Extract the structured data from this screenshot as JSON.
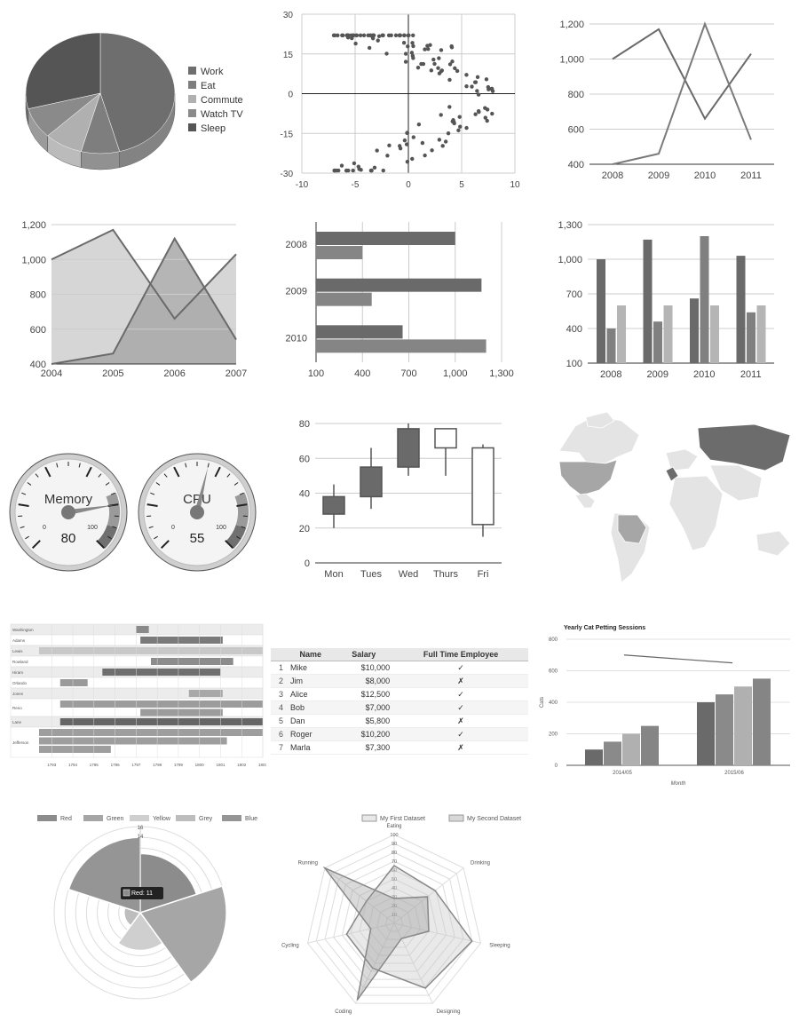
{
  "colors": {
    "dark": "#5f5f5f",
    "mid": "#777777",
    "light": "#aaaaaa",
    "lighter": "#cccccc",
    "grid": "#cccccc",
    "axis": "#333333"
  },
  "chart_data": [
    {
      "id": "pie",
      "type": "pie",
      "labels": [
        "Work",
        "Eat",
        "Commute",
        "Watch TV",
        "Sleep"
      ],
      "values": [
        11,
        2,
        2,
        2,
        7
      ],
      "colors": [
        "#6e6e6e",
        "#7e7e7e",
        "#b0b0b0",
        "#8a8a8a",
        "#555555"
      ],
      "legend": "right"
    },
    {
      "id": "scatter",
      "type": "scatter",
      "xlim": [
        -10,
        10
      ],
      "ylim": [
        -30,
        30
      ],
      "xticks": [
        "-10",
        "-5",
        "0",
        "5",
        "10"
      ],
      "yticks": [
        "30",
        "15",
        "0",
        "-15",
        "-30"
      ],
      "grid": true
    },
    {
      "id": "line",
      "type": "line",
      "categories": [
        "2008",
        "2009",
        "2010",
        "2011"
      ],
      "series": [
        {
          "values": [
            1000,
            1170,
            660,
            1030
          ]
        },
        {
          "values": [
            400,
            460,
            1200,
            540
          ]
        }
      ],
      "ylim": [
        400,
        1200
      ],
      "yticks": [
        "1,200",
        "1,000",
        "800",
        "600",
        "400"
      ]
    },
    {
      "id": "area",
      "type": "area",
      "categories": [
        "2004",
        "2005",
        "2006",
        "2007"
      ],
      "series": [
        {
          "values": [
            1000,
            1170,
            660,
            1030
          ]
        },
        {
          "values": [
            400,
            460,
            1120,
            540
          ]
        }
      ],
      "ylim": [
        400,
        1200
      ],
      "yticks": [
        "1,200",
        "1,000",
        "800",
        "600",
        "400"
      ]
    },
    {
      "id": "hbar",
      "type": "bar",
      "orientation": "horizontal",
      "categories": [
        "2008",
        "2009",
        "2010"
      ],
      "series": [
        {
          "values": [
            1000,
            1170,
            660
          ]
        },
        {
          "values": [
            400,
            460,
            1200
          ]
        }
      ],
      "xlim": [
        100,
        1300
      ],
      "xticks": [
        "100",
        "400",
        "700",
        "1,000",
        "1,300"
      ]
    },
    {
      "id": "cbar",
      "type": "bar",
      "categories": [
        "2008",
        "2009",
        "2010",
        "2011"
      ],
      "series": [
        {
          "values": [
            1000,
            1170,
            660,
            1030
          ]
        },
        {
          "values": [
            400,
            460,
            1200,
            540
          ]
        },
        {
          "values": [
            600,
            600,
            600,
            600
          ]
        }
      ],
      "ylim": [
        100,
        1300
      ],
      "yticks": [
        "1,300",
        "1,000",
        "700",
        "400",
        "100"
      ]
    },
    {
      "id": "gauge",
      "type": "gauge",
      "gauges": [
        {
          "label": "Memory",
          "value": "80",
          "v": 80
        },
        {
          "label": "CPU",
          "value": "55",
          "v": 55
        }
      ],
      "min": "0",
      "max": "100"
    },
    {
      "id": "candle",
      "type": "candlestick",
      "categories": [
        "Mon",
        "Tues",
        "Wed",
        "Thurs",
        "Fri"
      ],
      "low": [
        20,
        31,
        50,
        50,
        15
      ],
      "open": [
        28,
        38,
        55,
        77,
        66
      ],
      "close": [
        38,
        55,
        77,
        66,
        22
      ],
      "high": [
        45,
        66,
        80,
        77,
        68
      ],
      "ylim": [
        0,
        80
      ],
      "yticks": [
        "80",
        "60",
        "40",
        "20",
        "0"
      ]
    },
    {
      "id": "timeline",
      "type": "timeline",
      "rows": [
        "Washington",
        "Adams",
        "Lewis",
        "Rowland",
        "Hiram",
        "Orlando",
        "Jones",
        "Reno",
        "Lane",
        "Jefferson"
      ],
      "xticks": [
        "1793",
        "1794",
        "1795",
        "1796",
        "1797",
        "1798",
        "1799",
        "1800",
        "1801",
        "1802",
        "1803"
      ]
    },
    {
      "id": "table",
      "type": "table",
      "headers": [
        "Name",
        "Salary",
        "Full Time Employee"
      ],
      "rows": [
        {
          "n": "1",
          "name": "Mike",
          "salary": "$10,000",
          "ft": "✓"
        },
        {
          "n": "2",
          "name": "Jim",
          "salary": "$8,000",
          "ft": "✗"
        },
        {
          "n": "3",
          "name": "Alice",
          "salary": "$12,500",
          "ft": "✓"
        },
        {
          "n": "4",
          "name": "Bob",
          "salary": "$7,000",
          "ft": "✓"
        },
        {
          "n": "5",
          "name": "Dan",
          "salary": "$5,800",
          "ft": "✗"
        },
        {
          "n": "6",
          "name": "Roger",
          "salary": "$10,200",
          "ft": "✓"
        },
        {
          "n": "7",
          "name": "Marla",
          "salary": "$7,300",
          "ft": "✗"
        }
      ]
    },
    {
      "id": "combo",
      "type": "bar",
      "title": "Yearly Cat Petting Sessions",
      "xlabel": "Month",
      "ylabel": "Cats",
      "categories": [
        "2014/05",
        "2015/06"
      ],
      "series": [
        {
          "values": [
            100,
            400
          ]
        },
        {
          "values": [
            150,
            450
          ]
        },
        {
          "values": [
            200,
            500
          ]
        },
        {
          "values": [
            250,
            550
          ]
        }
      ],
      "line": [
        700,
        650
      ],
      "ylim": [
        0,
        800
      ],
      "yticks": [
        "800",
        "600",
        "400",
        "200",
        "0"
      ]
    },
    {
      "id": "polar",
      "type": "polar-area",
      "labels": [
        "Red",
        "Green",
        "Yellow",
        "Grey",
        "Blue"
      ],
      "values": [
        11,
        16,
        7,
        3,
        14
      ],
      "ticks": [
        "16",
        "14"
      ],
      "tooltip": "Red: 11",
      "rmax": 16
    },
    {
      "id": "radar",
      "type": "radar",
      "labels": [
        "Eating",
        "Drinking",
        "Sleeping",
        "Designing",
        "Coding",
        "Cycling",
        "Running"
      ],
      "series": [
        {
          "name": "My First Dataset",
          "values": [
            65,
            59,
            90,
            81,
            56,
            55,
            40
          ]
        },
        {
          "name": "My Second Dataset",
          "values": [
            28,
            48,
            40,
            19,
            96,
            27,
            100
          ]
        }
      ],
      "ticks": [
        "100",
        "90",
        "80",
        "70",
        "60",
        "50",
        "40",
        "30",
        "20",
        "10"
      ],
      "rmax": 100
    }
  ]
}
